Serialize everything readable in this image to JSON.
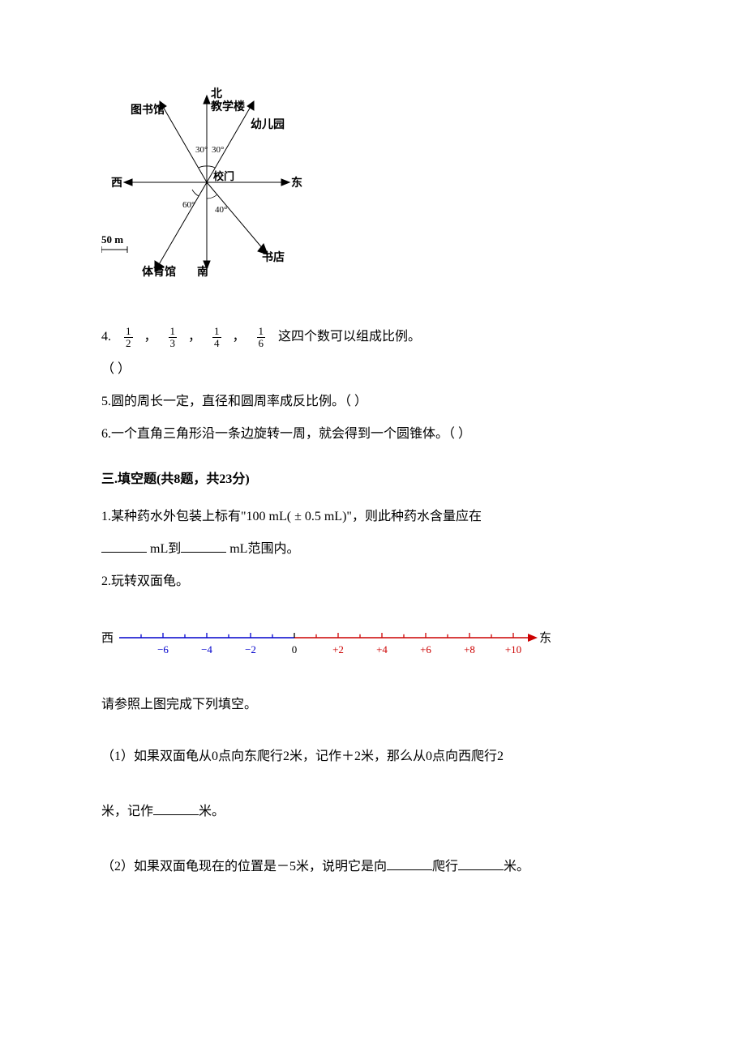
{
  "compass": {
    "labels": {
      "north": "北",
      "teaching_building": "教学楼",
      "kindergarten": "幼儿园",
      "east": "东",
      "bookstore": "书店",
      "south": "南",
      "gym": "体育馆",
      "west": "西",
      "school_gate": "校门",
      "library": "图书馆"
    },
    "angles": {
      "nw30": "30°",
      "ne30": "30°",
      "sw60": "60°",
      "se40": "40°"
    },
    "scale_label": "50 m",
    "line_color": "#000000",
    "text_color": "#000000",
    "font_size": 13
  },
  "q4": {
    "prefix": "4.",
    "frac1_num": "1",
    "frac1_den": "2",
    "frac2_num": "1",
    "frac2_den": "3",
    "frac3_num": "1",
    "frac3_den": "4",
    "frac4_num": "1",
    "frac4_den": "6",
    "suffix": "这四个数可以组成比例。",
    "paren": "（        ）",
    "comma": "，"
  },
  "q5": {
    "text": "5.圆的周长一定，直径和圆周率成反比例。（        ）"
  },
  "q6": {
    "text": "6.一个直角三角形沿一条边旋转一周，就会得到一个圆锥体。（        ）"
  },
  "section3": {
    "heading": "三.填空题(共8题，共23分)"
  },
  "fill_q1": {
    "line1_a": "1.某种药水外包装上标有\"100 mL( ± 0.5 mL)\"，则此种药水含量应在",
    "line2_a": " mL到",
    "line2_b": " mL范围内。"
  },
  "fill_q2": {
    "title": "2.玩转双面龟。",
    "numberline": {
      "west_label": "西",
      "east_label": "东",
      "ticks_neg": [
        "−6",
        "−4",
        "−2"
      ],
      "zero": "0",
      "ticks_pos": [
        "+2",
        "+4",
        "+6",
        "+8",
        "+10"
      ],
      "neg_color": "#0000cc",
      "pos_color": "#cc0000",
      "tick_height": 6,
      "font_size": 13
    },
    "prompt": "请参照上图完成下列填空。",
    "sub1_a": "（1）如果双面龟从0点向东爬行2米，记作＋2米，那么从0点向西爬行2",
    "sub1_b": "米，记作",
    "sub1_c": "米。",
    "sub2_a": "（2）如果双面龟现在的位置是－5米，说明它是向",
    "sub2_b": "爬行",
    "sub2_c": "米。"
  }
}
